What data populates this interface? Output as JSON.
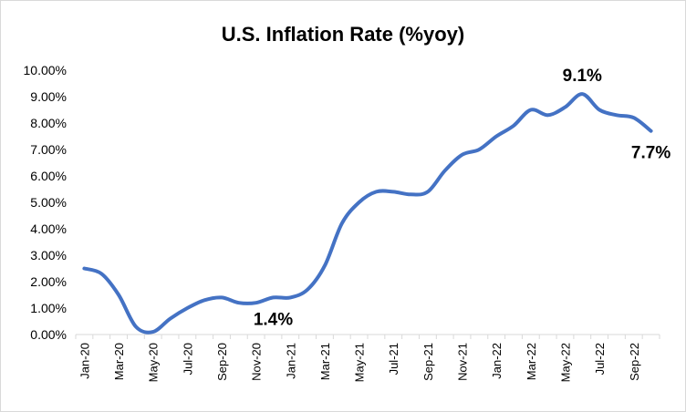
{
  "chart_data": {
    "type": "line",
    "title": "U.S. Inflation Rate (%yoy)",
    "xlabel": "",
    "ylabel": "",
    "ylim": [
      0,
      10
    ],
    "y_ticks": [
      0,
      1,
      2,
      3,
      4,
      5,
      6,
      7,
      8,
      9,
      10
    ],
    "y_tick_labels": [
      "0.00%",
      "1.00%",
      "2.00%",
      "3.00%",
      "4.00%",
      "5.00%",
      "6.00%",
      "7.00%",
      "8.00%",
      "9.00%",
      "10.00%"
    ],
    "x_tick_labels": [
      "Jan-20",
      "Mar-20",
      "May-20",
      "Jul-20",
      "Sep-20",
      "Nov-20",
      "Jan-21",
      "Mar-21",
      "May-21",
      "Jul-21",
      "Sep-21",
      "Nov-21",
      "Jan-22",
      "Mar-22",
      "May-22",
      "Jul-22",
      "Sep-22"
    ],
    "x_tick_step": 2,
    "grid": false,
    "legend": "none",
    "line_color": "#4472C4",
    "categories": [
      "Jan-20",
      "Feb-20",
      "Mar-20",
      "Apr-20",
      "May-20",
      "Jun-20",
      "Jul-20",
      "Aug-20",
      "Sep-20",
      "Oct-20",
      "Nov-20",
      "Dec-20",
      "Jan-21",
      "Feb-21",
      "Mar-21",
      "Apr-21",
      "May-21",
      "Jun-21",
      "Jul-21",
      "Aug-21",
      "Sep-21",
      "Oct-21",
      "Nov-21",
      "Dec-21",
      "Jan-22",
      "Feb-22",
      "Mar-22",
      "Apr-22",
      "May-22",
      "Jun-22",
      "Jul-22",
      "Aug-22",
      "Sep-22",
      "Oct-22"
    ],
    "series": [
      {
        "name": "U.S. Inflation Rate (%yoy)",
        "values": [
          2.5,
          2.3,
          1.5,
          0.3,
          0.1,
          0.6,
          1.0,
          1.3,
          1.4,
          1.2,
          1.2,
          1.4,
          1.4,
          1.7,
          2.6,
          4.2,
          5.0,
          5.4,
          5.4,
          5.3,
          5.4,
          6.2,
          6.8,
          7.0,
          7.5,
          7.9,
          8.5,
          8.3,
          8.6,
          9.1,
          8.5,
          8.3,
          8.2,
          7.7
        ]
      }
    ],
    "annotations": [
      {
        "text": "9.1%",
        "category": "Jun-22",
        "value": 9.1,
        "placement": "above"
      },
      {
        "text": "7.7%",
        "category": "Oct-22",
        "value": 7.7,
        "placement": "below"
      },
      {
        "text": "1.4%",
        "category": "Dec-20",
        "value": 1.4,
        "placement": "below"
      }
    ]
  }
}
